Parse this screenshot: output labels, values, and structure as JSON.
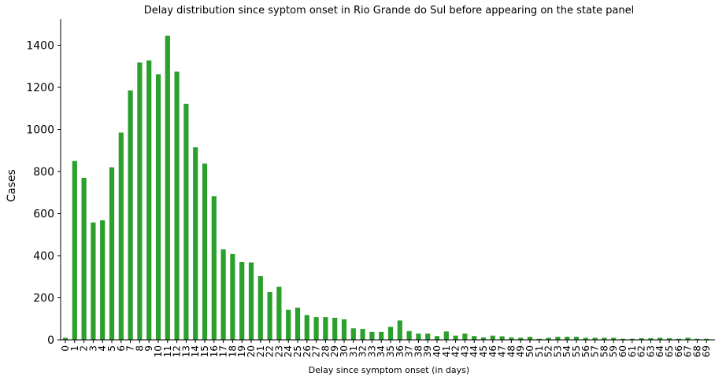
{
  "chart_data": {
    "type": "bar",
    "title": "Delay distribution since syptom onset in Rio Grande do Sul before appearing on the state panel",
    "xlabel": "Delay since symptom onset (in days)",
    "ylabel": "Cases",
    "ylim": [
      0,
      1520
    ],
    "yticks": [
      "0",
      "200",
      "400",
      "600",
      "800",
      "1000",
      "1200",
      "1400"
    ],
    "grid": false,
    "bar_color": "#2ca02c",
    "categories": [
      "0",
      "1",
      "2",
      "3",
      "4",
      "5",
      "6",
      "7",
      "8",
      "9",
      "10",
      "11",
      "12",
      "13",
      "14",
      "15",
      "16",
      "17",
      "18",
      "19",
      "20",
      "21",
      "22",
      "23",
      "24",
      "25",
      "26",
      "27",
      "28",
      "29",
      "30",
      "31",
      "32",
      "33",
      "34",
      "35",
      "36",
      "37",
      "38",
      "39",
      "40",
      "41",
      "42",
      "43",
      "44",
      "45",
      "46",
      "47",
      "48",
      "49",
      "50",
      "51",
      "52",
      "53",
      "54",
      "55",
      "56",
      "57",
      "58",
      "59",
      "60",
      "61",
      "62",
      "63",
      "64",
      "65",
      "66",
      "67",
      "68",
      "69"
    ],
    "values": [
      10,
      850,
      770,
      558,
      568,
      820,
      985,
      1185,
      1318,
      1328,
      1262,
      1445,
      1275,
      1122,
      915,
      838,
      683,
      430,
      408,
      370,
      368,
      303,
      228,
      252,
      143,
      153,
      118,
      108,
      108,
      105,
      98,
      55,
      52,
      38,
      38,
      62,
      92,
      42,
      30,
      30,
      18,
      40,
      20,
      30,
      18,
      12,
      20,
      17,
      12,
      10,
      15,
      5,
      10,
      15,
      15,
      15,
      10,
      10,
      10,
      10,
      5,
      5,
      8,
      8,
      10,
      8,
      5,
      10,
      5,
      5
    ]
  }
}
